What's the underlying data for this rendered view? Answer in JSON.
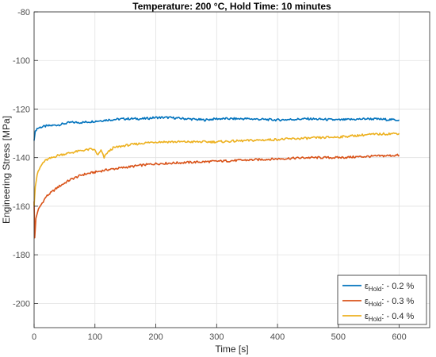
{
  "chart_data": {
    "type": "line",
    "title": "Temperature: 200 °C, Hold Time: 10 minutes",
    "xlabel": "Time [s]",
    "ylabel": "Engineering Stress [MPa]",
    "xlim": [
      0,
      650
    ],
    "ylim": [
      -210,
      -80
    ],
    "xticks": [
      0,
      100,
      200,
      300,
      400,
      500,
      600
    ],
    "yticks": [
      -80,
      -100,
      -120,
      -140,
      -160,
      -180,
      -200
    ],
    "xtick_labels": [
      "0",
      "100",
      "200",
      "300",
      "400",
      "500",
      "600"
    ],
    "ytick_labels": [
      "-80",
      "-100",
      "-120",
      "-140",
      "-160",
      "-180",
      "-200"
    ],
    "grid": true,
    "legend_position": "bottom-right",
    "series": [
      {
        "legend_main": "ε",
        "legend_sub": "Hold",
        "legend_suffix": ": - 0.2 %",
        "color": "#0072BD",
        "points": [
          [
            0,
            -133
          ],
          [
            2,
            -129
          ],
          [
            5,
            -128
          ],
          [
            10,
            -127.5
          ],
          [
            20,
            -127
          ],
          [
            40,
            -126.5
          ],
          [
            60,
            -125.5
          ],
          [
            80,
            -125.5
          ],
          [
            100,
            -125
          ],
          [
            120,
            -124.5
          ],
          [
            150,
            -124
          ],
          [
            180,
            -124
          ],
          [
            200,
            -123.5
          ],
          [
            220,
            -123.5
          ],
          [
            250,
            -124
          ],
          [
            280,
            -124.5
          ],
          [
            300,
            -124
          ],
          [
            350,
            -124
          ],
          [
            400,
            -124.5
          ],
          [
            450,
            -124
          ],
          [
            500,
            -124.5
          ],
          [
            550,
            -124
          ],
          [
            600,
            -124.5
          ]
        ]
      },
      {
        "legend_main": "ε",
        "legend_sub": "Hold",
        "legend_suffix": ": - 0.3 %",
        "color": "#D95319",
        "points": [
          [
            0,
            -158
          ],
          [
            1,
            -173
          ],
          [
            3,
            -165
          ],
          [
            6,
            -162
          ],
          [
            10,
            -160
          ],
          [
            15,
            -158
          ],
          [
            20,
            -156
          ],
          [
            30,
            -154
          ],
          [
            40,
            -152
          ],
          [
            60,
            -149
          ],
          [
            80,
            -147
          ],
          [
            100,
            -146
          ],
          [
            120,
            -145
          ],
          [
            150,
            -144
          ],
          [
            180,
            -143
          ],
          [
            200,
            -142.5
          ],
          [
            250,
            -142
          ],
          [
            300,
            -141.5
          ],
          [
            350,
            -141
          ],
          [
            400,
            -140.5
          ],
          [
            450,
            -140
          ],
          [
            500,
            -140
          ],
          [
            550,
            -139.5
          ],
          [
            600,
            -139
          ]
        ]
      },
      {
        "legend_main": "ε",
        "legend_sub": "Hold",
        "legend_suffix": ": - 0.4 %",
        "color": "#EDB120",
        "points": [
          [
            0,
            -160
          ],
          [
            2,
            -152
          ],
          [
            5,
            -147
          ],
          [
            10,
            -144
          ],
          [
            15,
            -142
          ],
          [
            20,
            -141
          ],
          [
            30,
            -140
          ],
          [
            40,
            -139
          ],
          [
            60,
            -138
          ],
          [
            80,
            -137
          ],
          [
            95,
            -136.5
          ],
          [
            100,
            -137
          ],
          [
            105,
            -139
          ],
          [
            110,
            -137
          ],
          [
            115,
            -140
          ],
          [
            120,
            -138
          ],
          [
            130,
            -136
          ],
          [
            150,
            -135
          ],
          [
            180,
            -134
          ],
          [
            200,
            -133.5
          ],
          [
            250,
            -133.5
          ],
          [
            300,
            -133.5
          ],
          [
            350,
            -133
          ],
          [
            400,
            -132.5
          ],
          [
            450,
            -132
          ],
          [
            500,
            -131.5
          ],
          [
            550,
            -130.5
          ],
          [
            600,
            -130
          ]
        ]
      }
    ]
  }
}
